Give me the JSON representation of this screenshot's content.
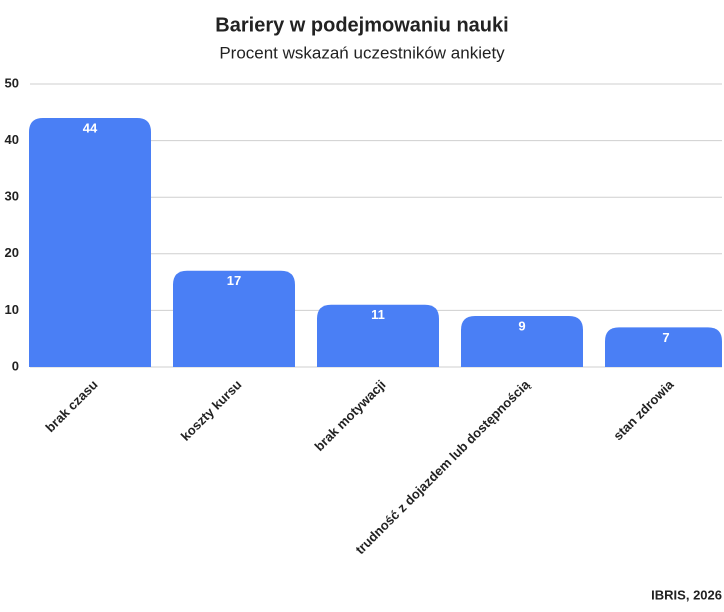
{
  "chart_data": {
    "type": "bar",
    "title": "Bariery w podejmowaniu nauki",
    "subtitle": "Procent wskazań uczestników ankiety",
    "categories": [
      "brak czasu",
      "koszty kursu",
      "brak motywacji",
      "trudność z dojazdem lub dostępnością",
      "stan zdrowia"
    ],
    "values": [
      44,
      17,
      11,
      9,
      7
    ],
    "color": "#4a7ff5",
    "ylim": [
      0,
      50
    ],
    "yticks": [
      0,
      10,
      20,
      30,
      40,
      50
    ],
    "grid": true,
    "source": "IBRIS, 2026"
  }
}
